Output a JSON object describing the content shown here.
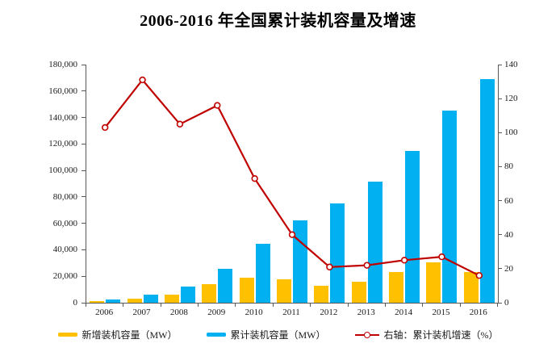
{
  "title": "2006-2016 年全国累计装机容量及增速",
  "chart_data": {
    "type": "combo",
    "categories": [
      "2006",
      "2007",
      "2008",
      "2009",
      "2010",
      "2011",
      "2012",
      "2013",
      "2014",
      "2015",
      "2016"
    ],
    "series": [
      {
        "name": "新增装机容量（MW）",
        "type": "bar",
        "axis": "left",
        "color": "#FFC000",
        "values": [
          1337,
          3313,
          6246,
          13803,
          18928,
          17631,
          12960,
          16089,
          23196,
          30753,
          23370
        ]
      },
      {
        "name": "累计装机容量（MW）",
        "type": "bar",
        "axis": "left",
        "color": "#00B0F0",
        "values": [
          2599,
          5912,
          12121,
          25853,
          44733,
          62364,
          75324,
          91413,
          114609,
          145362,
          168730
        ]
      },
      {
        "name": "右轴：累计装机增速（%）",
        "type": "line",
        "axis": "right",
        "color": "#C00000",
        "marker": "open-circle",
        "values": [
          103,
          131,
          105,
          116,
          73,
          40,
          21,
          22,
          25,
          27,
          16
        ]
      }
    ],
    "left_axis": {
      "min": 0,
      "max": 180000,
      "step": 20000,
      "tick_labels": [
        "0",
        "20,000",
        "40,000",
        "60,000",
        "80,000",
        "100,000",
        "120,000",
        "140,000",
        "160,000",
        "180,000"
      ]
    },
    "right_axis": {
      "min": 0,
      "max": 140,
      "step": 20,
      "tick_labels": [
        "0",
        "20",
        "40",
        "60",
        "80",
        "100",
        "120",
        "140"
      ]
    },
    "legend_position": "bottom",
    "grid": false,
    "axis_color": "#595959",
    "text_color": "#1a1a1a"
  }
}
